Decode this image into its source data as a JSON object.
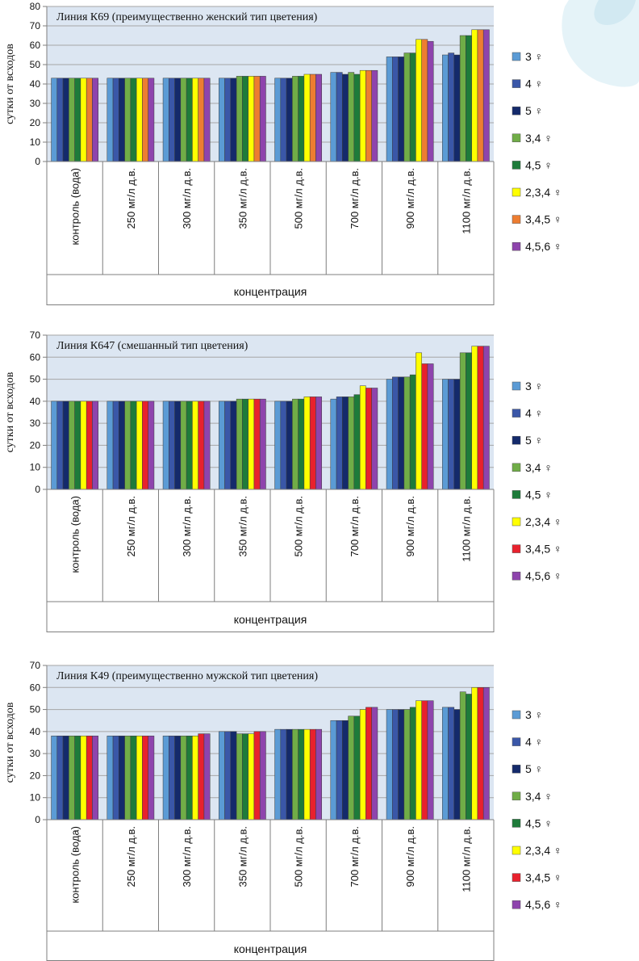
{
  "chart_data": [
    {
      "type": "bar",
      "title": "Линия К69 (преимущественно женский тип цветения)",
      "ylabel": "сутки от всходов",
      "xlabel": "концентрация",
      "ylim": [
        0,
        80
      ],
      "yticks": [
        0,
        10,
        20,
        30,
        40,
        50,
        60,
        70,
        80
      ],
      "categories": [
        "контроль (вода)",
        "250 мг/л д.в.",
        "300 мг/л д.в.",
        "350 мг/л д.в.",
        "500 мг/л д.в.",
        "700 мг/л д.в.",
        "900 мг/л д.в.",
        "1100 мг/л д.в."
      ],
      "series": [
        {
          "name": "3 ♀",
          "color": "#5b9bd5",
          "values": [
            43,
            43,
            43,
            43,
            43,
            46,
            54,
            55
          ]
        },
        {
          "name": "4 ♀",
          "color": "#3a57a8",
          "values": [
            43,
            43,
            43,
            43,
            43,
            46,
            54,
            56
          ]
        },
        {
          "name": "5 ♀",
          "color": "#142a6b",
          "values": [
            43,
            43,
            43,
            43,
            43,
            45,
            54,
            55
          ]
        },
        {
          "name": "3,4 ♀",
          "color": "#70ad47",
          "values": [
            43,
            43,
            43,
            44,
            44,
            46,
            56,
            65
          ]
        },
        {
          "name": "4,5 ♀",
          "color": "#1e7b3a",
          "values": [
            43,
            43,
            43,
            44,
            44,
            45,
            56,
            65
          ]
        },
        {
          "name": "2,3,4 ♀",
          "color": "#ffff00",
          "values": [
            43,
            43,
            43,
            44,
            45,
            47,
            63,
            68
          ]
        },
        {
          "name": "3,4,5 ♀",
          "color": "#ed7d31",
          "values": [
            43,
            43,
            43,
            44,
            45,
            47,
            63,
            68
          ]
        },
        {
          "name": "4,5,6 ♀",
          "color": "#8e44ad",
          "values": [
            43,
            43,
            43,
            44,
            45,
            47,
            62,
            68
          ]
        }
      ]
    },
    {
      "type": "bar",
      "title": "Линия К647 (смешанный тип цветения)",
      "ylabel": "сутки от всходов",
      "xlabel": "концентрация",
      "ylim": [
        0,
        70
      ],
      "yticks": [
        0,
        10,
        20,
        30,
        40,
        50,
        60,
        70
      ],
      "categories": [
        "контроль (вода)",
        "250 мг/л д.в.",
        "300 мг/л д.в.",
        "350 мг/л д.в.",
        "500 мг/л д.в.",
        "700 мг/л д.в.",
        "900 мг/л д.в.",
        "1100 мг/л д.в."
      ],
      "series": [
        {
          "name": "3 ♀",
          "color": "#5b9bd5",
          "values": [
            40,
            40,
            40,
            40,
            40,
            41,
            50,
            50
          ]
        },
        {
          "name": "4 ♀",
          "color": "#3a57a8",
          "values": [
            40,
            40,
            40,
            40,
            40,
            42,
            51,
            50
          ]
        },
        {
          "name": "5 ♀",
          "color": "#142a6b",
          "values": [
            40,
            40,
            40,
            40,
            40,
            42,
            51,
            50
          ]
        },
        {
          "name": "3,4 ♀",
          "color": "#70ad47",
          "values": [
            40,
            40,
            40,
            41,
            41,
            42,
            51,
            62
          ]
        },
        {
          "name": "4,5 ♀",
          "color": "#1e7b3a",
          "values": [
            40,
            40,
            40,
            41,
            41,
            43,
            52,
            62
          ]
        },
        {
          "name": "2,3,4 ♀",
          "color": "#ffff00",
          "values": [
            40,
            40,
            40,
            41,
            42,
            47,
            62,
            65
          ]
        },
        {
          "name": "3,4,5 ♀",
          "color": "#e8212d",
          "values": [
            40,
            40,
            40,
            41,
            42,
            46,
            57,
            65
          ]
        },
        {
          "name": "4,5,6 ♀",
          "color": "#8e44ad",
          "values": [
            40,
            40,
            40,
            41,
            42,
            46,
            57,
            65
          ]
        }
      ]
    },
    {
      "type": "bar",
      "title": "Линия К49 (преимущественно мужской тип цветения)",
      "ylabel": "сутки от всходов",
      "xlabel": "концентрация",
      "ylim": [
        0,
        70
      ],
      "yticks": [
        0,
        10,
        20,
        30,
        40,
        50,
        60,
        70
      ],
      "categories": [
        "контроль (вода)",
        "250 мг/л д.в.",
        "300 мг/л д.в.",
        "350 мг/л д.в.",
        "500 мг/л д.в.",
        "700 мг/л д.в.",
        "900 мг/л д.в.",
        "1100 мг/л д.в."
      ],
      "series": [
        {
          "name": "3 ♀",
          "color": "#5b9bd5",
          "values": [
            38,
            38,
            38,
            40,
            41,
            45,
            50,
            51
          ]
        },
        {
          "name": "4 ♀",
          "color": "#3a57a8",
          "values": [
            38,
            38,
            38,
            40,
            41,
            45,
            50,
            51
          ]
        },
        {
          "name": "5 ♀",
          "color": "#142a6b",
          "values": [
            38,
            38,
            38,
            40,
            41,
            45,
            50,
            50
          ]
        },
        {
          "name": "3,4 ♀",
          "color": "#70ad47",
          "values": [
            38,
            38,
            38,
            39,
            41,
            47,
            50,
            58
          ]
        },
        {
          "name": "4,5 ♀",
          "color": "#1e7b3a",
          "values": [
            38,
            38,
            38,
            39,
            41,
            47,
            51,
            57
          ]
        },
        {
          "name": "2,3,4 ♀",
          "color": "#ffff00",
          "values": [
            38,
            38,
            38,
            39,
            41,
            50,
            54,
            60
          ]
        },
        {
          "name": "3,4,5 ♀",
          "color": "#e8212d",
          "values": [
            38,
            38,
            39,
            40,
            41,
            51,
            54,
            60
          ]
        },
        {
          "name": "4,5,6 ♀",
          "color": "#8e44ad",
          "values": [
            38,
            38,
            39,
            40,
            41,
            51,
            54,
            60
          ]
        }
      ]
    }
  ]
}
